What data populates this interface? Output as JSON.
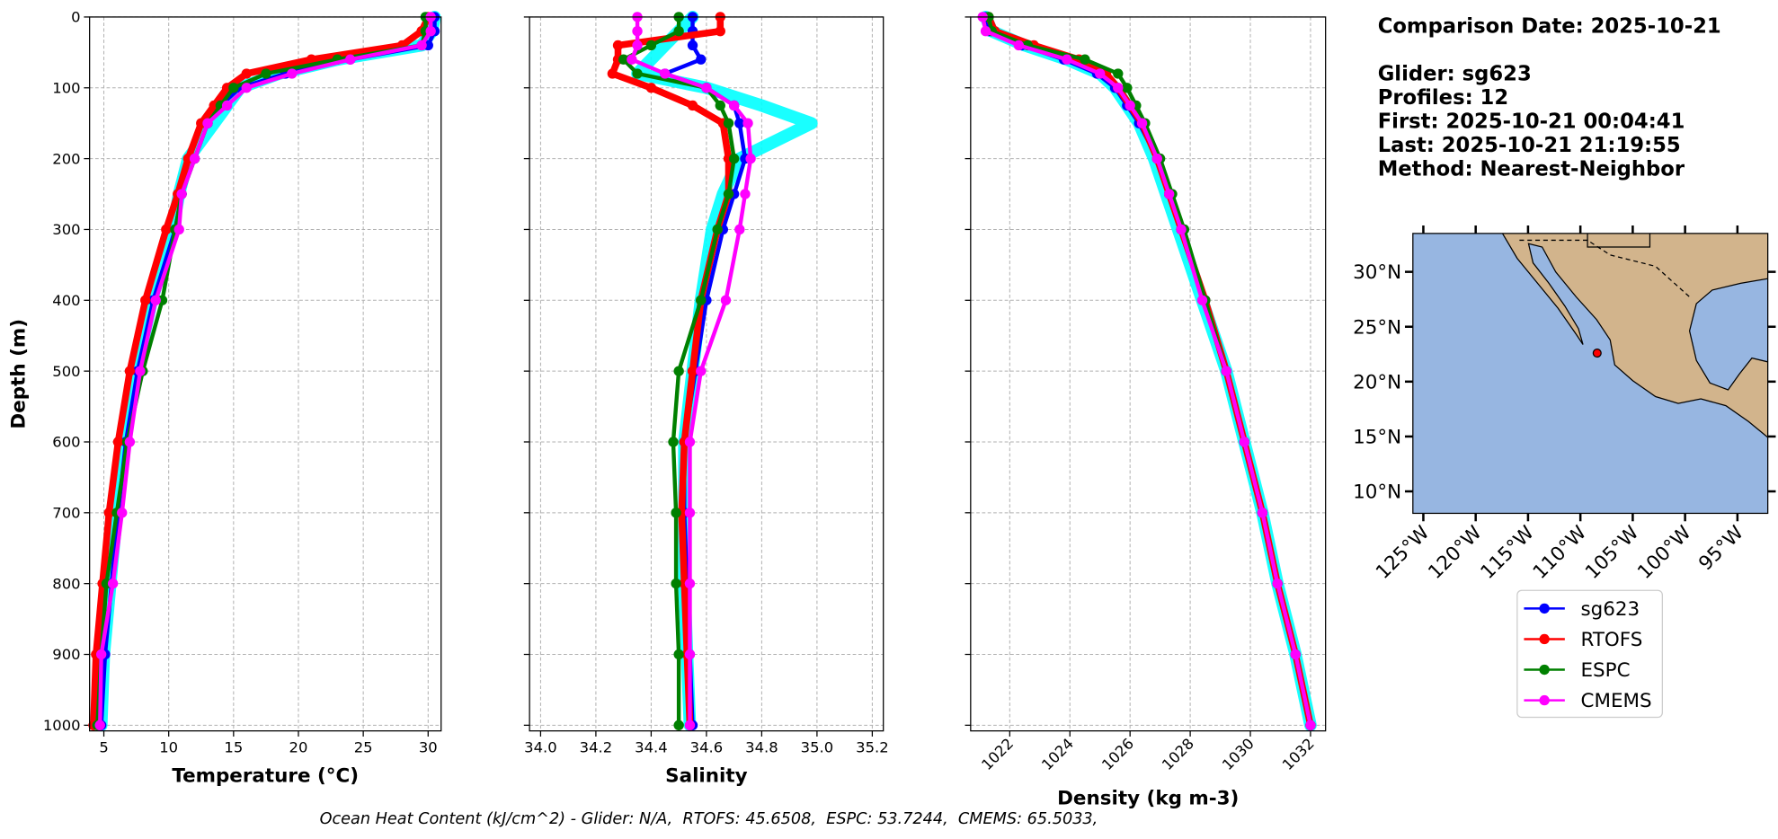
{
  "chart_data": [
    {
      "type": "line",
      "xlabel": "Temperature (°C)",
      "ylabel": "Depth (m)",
      "xlim": [
        3.9,
        31
      ],
      "xticks": [
        5,
        10,
        15,
        20,
        25,
        30
      ],
      "ylim": [
        1008,
        0
      ],
      "yticks": [
        0,
        100,
        200,
        300,
        400,
        500,
        600,
        700,
        800,
        900,
        1000
      ],
      "grid": true,
      "y": [
        0,
        20,
        40,
        60,
        80,
        100,
        125,
        150,
        200,
        250,
        300,
        400,
        500,
        600,
        700,
        800,
        900,
        1000
      ],
      "series": [
        {
          "color": "#00ffff",
          "values": [
            30.5,
            30.3,
            29.5,
            23,
            18.5,
            15.5,
            14.5,
            13.5,
            11.5,
            10.8,
            10.3,
            8.7,
            7.5,
            6.6,
            6.0,
            5.5,
            5.0,
            4.8
          ]
        },
        {
          "name": "sg623",
          "color": "#0000ff",
          "values": [
            30.5,
            30.5,
            30,
            24,
            19,
            15.5,
            14,
            13,
            12,
            11,
            10.5,
            8.8,
            7.6,
            6.7,
            6.1,
            5.6,
            5.1,
            4.8
          ]
        },
        {
          "name": "RTOFS",
          "color": "#ff0000",
          "values": [
            30,
            29.5,
            28,
            21,
            16,
            14.5,
            13.5,
            12.5,
            11.5,
            10.7,
            9.8,
            8.2,
            7,
            6.1,
            5.4,
            4.9,
            4.4,
            4.2
          ]
        },
        {
          "name": "ESPC",
          "color": "#008000",
          "values": [
            29.8,
            29.8,
            29.5,
            23,
            17.5,
            15,
            14,
            13,
            12,
            11,
            10.5,
            9.5,
            8,
            6.8,
            6,
            5.2,
            4.8,
            4.5
          ]
        },
        {
          "name": "CMEMS",
          "color": "#ff00ff",
          "values": [
            30.2,
            30.2,
            29.5,
            24,
            19.5,
            16,
            14.5,
            13,
            12,
            11,
            10.8,
            9,
            7.8,
            7,
            6.4,
            5.7,
            4.8,
            4.7
          ]
        }
      ]
    },
    {
      "type": "line",
      "xlabel": "Salinity",
      "xlim": [
        33.96,
        35.24
      ],
      "xticks": [
        {
          "value": 34,
          "label": "34.0"
        },
        34.2,
        34.4,
        34.6,
        34.8,
        {
          "value": 35,
          "label": "35.0"
        },
        35.2
      ],
      "ylim": [
        1008,
        0
      ],
      "yticks": [
        0,
        100,
        200,
        300,
        400,
        500,
        600,
        700,
        800,
        900,
        1000
      ],
      "grid": true,
      "y": [
        0,
        20,
        40,
        60,
        80,
        100,
        125,
        150,
        200,
        250,
        300,
        400,
        500,
        600,
        700,
        800,
        900,
        1000
      ],
      "series": [
        {
          "color": "#00ffff",
          "values": [
            34.55,
            34.5,
            34.45,
            34.4,
            34.35,
            34.6,
            34.8,
            34.98,
            34.72,
            34.66,
            34.62,
            34.58,
            34.55,
            34.52,
            34.52,
            34.52,
            34.53,
            34.54
          ]
        },
        {
          "name": "sg623",
          "color": "#0000ff",
          "values": [
            34.55,
            34.55,
            34.55,
            34.58,
            34.45,
            34.6,
            34.7,
            34.72,
            34.74,
            34.7,
            34.66,
            34.6,
            34.56,
            34.52,
            34.52,
            34.53,
            34.54,
            34.55
          ]
        },
        {
          "name": "RTOFS",
          "color": "#ff0000",
          "values": [
            34.65,
            34.65,
            34.28,
            34.28,
            34.26,
            34.4,
            34.55,
            34.66,
            34.68,
            34.68,
            34.64,
            34.58,
            34.55,
            34.52,
            34.51,
            34.52,
            34.53,
            34.54
          ]
        },
        {
          "name": "ESPC",
          "color": "#008000",
          "values": [
            34.5,
            34.5,
            34.4,
            34.3,
            34.35,
            34.6,
            34.65,
            34.68,
            34.7,
            34.68,
            34.64,
            34.58,
            34.5,
            34.48,
            34.49,
            34.49,
            34.5,
            34.5
          ]
        },
        {
          "name": "CMEMS",
          "color": "#ff00ff",
          "values": [
            34.35,
            34.35,
            34.35,
            34.33,
            34.45,
            34.6,
            34.7,
            34.75,
            34.76,
            34.74,
            34.72,
            34.67,
            34.58,
            34.54,
            34.54,
            34.54,
            34.54,
            34.54
          ]
        }
      ]
    },
    {
      "type": "line",
      "xlabel": "Density (kg m-3)",
      "xlim": [
        1020.7,
        1032.5
      ],
      "xticks": [
        1022,
        1024,
        1026,
        1028,
        1030,
        1032
      ],
      "ylim": [
        1008,
        0
      ],
      "yticks": [
        0,
        100,
        200,
        300,
        400,
        500,
        600,
        700,
        800,
        900,
        1000
      ],
      "grid": true,
      "y": [
        0,
        20,
        40,
        60,
        80,
        100,
        125,
        150,
        200,
        250,
        300,
        400,
        500,
        600,
        700,
        800,
        900,
        1000
      ],
      "series": [
        {
          "color": "#00ffff",
          "values": [
            1021.2,
            1021.4,
            1022.5,
            1023.9,
            1025.0,
            1025.5,
            1025.9,
            1026.3,
            1026.8,
            1027.2,
            1027.6,
            1028.4,
            1029.2,
            1029.8,
            1030.4,
            1030.9,
            1031.5,
            1032.0
          ]
        },
        {
          "name": "sg623",
          "color": "#0000ff",
          "values": [
            1021.2,
            1021.3,
            1022.4,
            1023.8,
            1024.9,
            1025.5,
            1025.9,
            1026.3,
            1026.9,
            1027.3,
            1027.7,
            1028.5,
            1029.2,
            1029.8,
            1030.4,
            1030.9,
            1031.5,
            1032.0
          ]
        },
        {
          "name": "RTOFS",
          "color": "#ff0000",
          "values": [
            1021.3,
            1021.5,
            1022.8,
            1024.3,
            1025.2,
            1025.6,
            1026.0,
            1026.4,
            1026.9,
            1027.3,
            1027.7,
            1028.5,
            1029.2,
            1029.8,
            1030.4,
            1030.9,
            1031.5,
            1032.0
          ]
        },
        {
          "name": "ESPC",
          "color": "#008000",
          "values": [
            1021.3,
            1021.4,
            1022.6,
            1024.5,
            1025.6,
            1025.9,
            1026.2,
            1026.5,
            1027.0,
            1027.4,
            1027.8,
            1028.5,
            1029.2,
            1029.8,
            1030.4,
            1030.9,
            1031.5,
            1032.0
          ]
        },
        {
          "name": "CMEMS",
          "color": "#ff00ff",
          "values": [
            1021.1,
            1021.2,
            1022.3,
            1023.9,
            1025.0,
            1025.6,
            1026.0,
            1026.4,
            1026.9,
            1027.3,
            1027.7,
            1028.4,
            1029.2,
            1029.8,
            1030.4,
            1030.9,
            1031.5,
            1032.0
          ]
        }
      ]
    }
  ],
  "info": [
    "Comparison Date: 2025-10-21",
    "Glider: sg623",
    "Profiles: 12",
    "First: 2025-10-21 00:04:41",
    "Last: 2025-10-21 21:19:55",
    "Method: Nearest-Neighbor"
  ],
  "map": {
    "lonlim": [
      -126,
      -92.1
    ],
    "latlim": [
      8,
      33.5
    ],
    "lonticks": [
      {
        "value": -125,
        "label": "125°W"
      },
      {
        "value": -120,
        "label": "120°W"
      },
      {
        "value": -115,
        "label": "115°W"
      },
      {
        "value": -110,
        "label": "110°W"
      },
      {
        "value": -105,
        "label": "105°W"
      },
      {
        "value": -100,
        "label": "100°W"
      },
      {
        "value": -95,
        "label": "95°W"
      }
    ],
    "latticks": [
      {
        "value": 10,
        "label": "10°N"
      },
      {
        "value": 15,
        "label": "15°N"
      },
      {
        "value": 20,
        "label": "20°N"
      },
      {
        "value": 25,
        "label": "25°N"
      },
      {
        "value": 30,
        "label": "30°N"
      }
    ],
    "marker": {
      "lon": -108.4,
      "lat": 22.6,
      "color": "#ff0000"
    }
  },
  "footer": "Ocean Heat Content (kJ/cm^2) - Glider: N/A,  RTOFS: 45.6508,  ESPC: 53.7244,  CMEMS: 65.5033,"
}
